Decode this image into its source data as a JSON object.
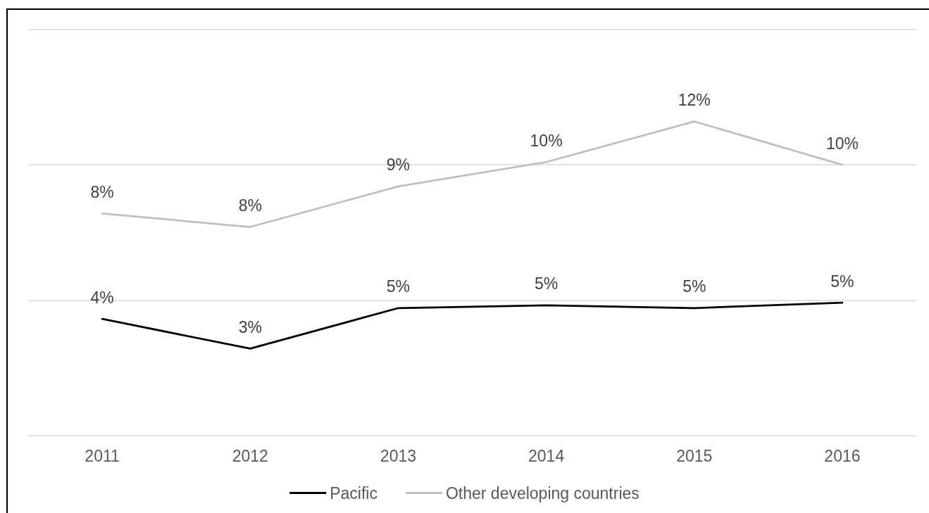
{
  "chart_data": {
    "type": "line",
    "categories": [
      "2011",
      "2012",
      "2013",
      "2014",
      "2015",
      "2016"
    ],
    "series": [
      {
        "name": "Pacific",
        "color": "#000000",
        "values": [
          4.3,
          3.2,
          4.7,
          4.8,
          4.7,
          4.9
        ],
        "value_labels": [
          "4%",
          "3%",
          "5%",
          "5%",
          "5%",
          "5%"
        ]
      },
      {
        "name": "Other developing countries",
        "color": "#bfbfbf",
        "values": [
          8.2,
          7.7,
          9.2,
          10.1,
          11.6,
          10.0
        ],
        "value_labels": [
          "8%",
          "8%",
          "9%",
          "10%",
          "12%",
          "10%"
        ]
      }
    ],
    "ylim": [
      0,
      15
    ],
    "yticks": [
      {
        "value": 0,
        "label": null
      },
      {
        "value": 5,
        "label": null
      },
      {
        "value": 10,
        "label": null
      },
      {
        "value": 15,
        "label": null
      }
    ],
    "grid": "y",
    "legend": "bottom",
    "tick_labels": "x",
    "marker": "none",
    "line_style": "solid"
  }
}
